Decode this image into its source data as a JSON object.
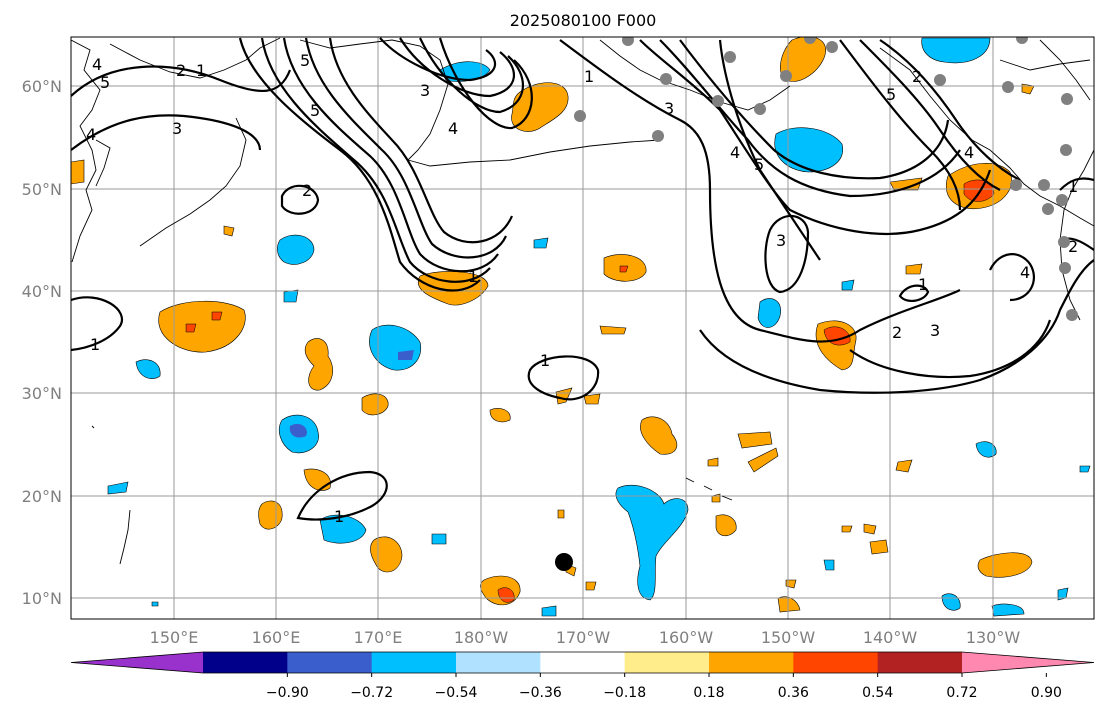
{
  "title": "2025080100 F000",
  "lat_labels": [
    "60°N",
    "50°N",
    "40°N",
    "30°N",
    "20°N",
    "10°N"
  ],
  "lon_labels": [
    "150°E",
    "160°E",
    "170°E",
    "180°W",
    "170°W",
    "160°W",
    "150°W",
    "140°W",
    "130°W"
  ],
  "colorbar": {
    "tick_labels": [
      "−0.90",
      "−0.72",
      "−0.54",
      "−0.36",
      "−0.18",
      "0.18",
      "0.36",
      "0.54",
      "0.72",
      "0.90"
    ],
    "colors": [
      "#9932cc",
      "#00008b",
      "#3a5fcd",
      "#00bfff",
      "#b0e2ff",
      "#ffffff",
      "#ffec8b",
      "#ffa500",
      "#ff4500",
      "#b22222",
      "#ff88b0"
    ]
  },
  "contour_labels": [
    "1",
    "2",
    "3",
    "4",
    "5"
  ],
  "colors": {
    "positive_fill": "#ffa500",
    "negative_fill": "#00bfff",
    "strong_positive": "#ff4500",
    "strong_negative": "#3a5fcd",
    "station_marker": "#808080",
    "center_marker": "#000000"
  }
}
